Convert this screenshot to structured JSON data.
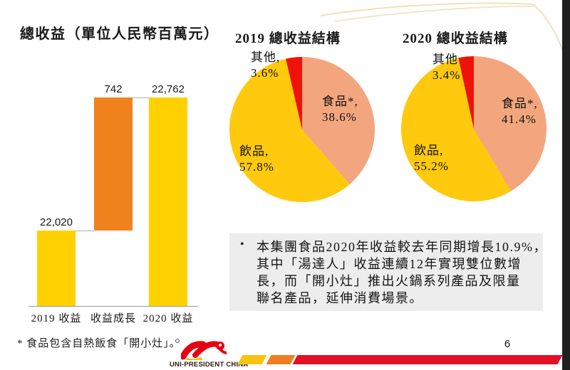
{
  "title": "總收益（單位人民幣百萬元）",
  "chart_data": [
    {
      "type": "bar",
      "subtype": "waterfall",
      "title": "總收益（單位人民幣百萬元）",
      "unit": "人民幣百萬元",
      "categories": [
        "2019 收益",
        "收益成長",
        "2020 收益"
      ],
      "values": [
        22020,
        742,
        22762
      ],
      "value_labels": [
        "22,020",
        "742",
        "22,762"
      ],
      "bar_kinds": [
        "absolute",
        "delta",
        "absolute"
      ],
      "colors": [
        "#FFD100",
        "#F0821E",
        "#FFD100"
      ],
      "ylim": [
        21600,
        22762
      ],
      "grid": false,
      "legend": "none"
    },
    {
      "type": "pie",
      "title": "2019 總收益結構",
      "direction": "clockwise_from_top",
      "slices": [
        {
          "name": "食品*",
          "value": 38.6,
          "label": "食品*,",
          "pct_label": "38.6%",
          "color": "#F3A67E"
        },
        {
          "name": "飲品",
          "value": 57.8,
          "label": "飲品,",
          "pct_label": "57.8%",
          "color": "#FFC90E"
        },
        {
          "name": "其他",
          "value": 3.6,
          "label": "其他,",
          "pct_label": "3.6%",
          "color": "#EE1208"
        }
      ]
    },
    {
      "type": "pie",
      "title": "2020 總收益結構",
      "direction": "clockwise_from_top",
      "slices": [
        {
          "name": "食品*",
          "value": 41.4,
          "label": "食品*,",
          "pct_label": "41.4%",
          "color": "#F3A67E"
        },
        {
          "name": "飲品",
          "value": 55.2,
          "label": "飲品,",
          "pct_label": "55.2%",
          "color": "#FFC90E"
        },
        {
          "name": "其他",
          "value": 3.4,
          "label": "其他",
          "pct_label": "3.4%",
          "color": "#EE1208"
        }
      ]
    }
  ],
  "bullet_box": {
    "bullet": "•",
    "lines": [
      "本集團食品2020年收益較去年同期增長10.9%，",
      "其中「湯達人」收益連續12年實現雙位數增",
      "長，而「開小灶」推出火鍋系列產品及限量",
      "聯名產品，延伸消費場景。"
    ]
  },
  "footnote": "* 食品包含自熱飯食「開小灶」。",
  "footer": {
    "brand": "UNI-PRESIDENT CHINA",
    "page_number": "6"
  },
  "palette": {
    "bar_yellow": "#FFD100",
    "bar_orange": "#F0821E",
    "pie_food_salmon": "#F3A67E",
    "pie_drink_yellow": "#FFC90E",
    "pie_other_red": "#EE1208",
    "ribbon_yellow": "#F7C411",
    "ribbon_orange": "#EE7E23",
    "ribbon_red": "#E60F28",
    "brand_red": "#E60012",
    "edge_strip_black": "#202020",
    "bullet_box_gray": "#EDEDED"
  },
  "icons": {
    "logo": "uni-president-bird"
  }
}
